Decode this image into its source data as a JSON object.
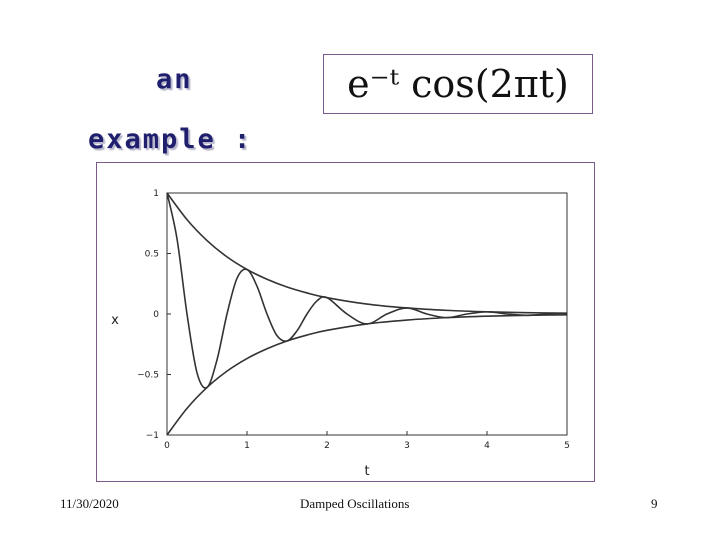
{
  "slide": {
    "heading_line1": "an",
    "heading_line2": "example :",
    "formula": "e⁻ᵗ cos(2πt)",
    "footer_date": "11/30/2020",
    "footer_title": "Damped Oscillations",
    "page_number": "9",
    "colors": {
      "heading": "#1f1f6e",
      "frame_border": "#7a5a8a",
      "curve": "#333333"
    }
  },
  "chart_data": {
    "type": "line",
    "title": "",
    "xlabel": "t",
    "ylabel": "x",
    "xlim": [
      0,
      5
    ],
    "ylim": [
      -1,
      1
    ],
    "x_ticks": [
      0,
      1,
      2,
      3,
      4,
      5
    ],
    "y_ticks": [
      -1,
      -0.5,
      0,
      0.5,
      1
    ],
    "x_tick_labels": [
      "0",
      "1",
      "2",
      "3",
      "4",
      "5"
    ],
    "y_tick_labels": [
      "−1",
      "−0.5",
      "0",
      "0.5",
      "1"
    ],
    "grid": false,
    "legend": "none",
    "series": [
      {
        "x": [
          0,
          0.25,
          0.5,
          0.75,
          1,
          1.25,
          1.5,
          1.75,
          2,
          2.5,
          3,
          3.5,
          4,
          4.5,
          5
        ],
        "values": [
          1,
          0.78,
          0.607,
          0.472,
          0.368,
          0.287,
          0.223,
          0.174,
          0.135,
          0.082,
          0.05,
          0.03,
          0.018,
          0.011,
          0.007
        ]
      },
      {
        "x": [
          0,
          0.25,
          0.5,
          0.75,
          1,
          1.25,
          1.5,
          1.75,
          2,
          2.5,
          3,
          3.5,
          4,
          4.5,
          5
        ],
        "values": [
          -1,
          -0.78,
          -0.607,
          -0.472,
          -0.368,
          -0.287,
          -0.223,
          -0.174,
          -0.135,
          -0.082,
          -0.05,
          -0.03,
          -0.018,
          -0.011,
          -0.007
        ]
      },
      {
        "x": [
          0,
          0.125,
          0.25,
          0.375,
          0.5,
          0.625,
          0.75,
          0.875,
          1,
          1.125,
          1.25,
          1.375,
          1.5,
          1.625,
          1.75,
          1.875,
          2,
          2.25,
          2.5,
          2.75,
          3,
          3.25,
          3.5,
          3.75,
          4,
          4.25,
          4.5,
          4.75,
          5
        ],
        "values": [
          1,
          0.622,
          0,
          -0.486,
          -0.607,
          -0.379,
          0,
          0.295,
          0.368,
          0.23,
          0,
          -0.179,
          -0.223,
          -0.139,
          0,
          0.109,
          0.135,
          0,
          -0.082,
          0,
          0.05,
          0,
          -0.03,
          0,
          0.018,
          0,
          -0.011,
          0,
          0.007
        ]
      }
    ]
  }
}
